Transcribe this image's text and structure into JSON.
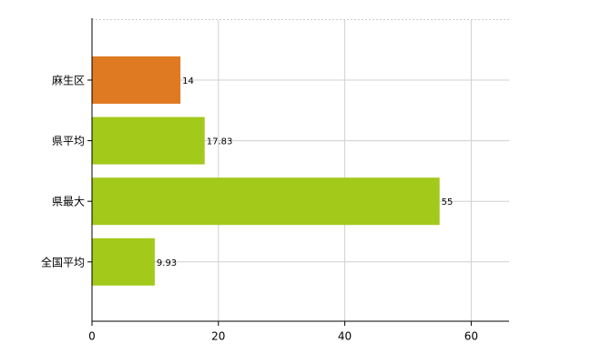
{
  "chart_data": {
    "type": "bar",
    "orientation": "horizontal",
    "categories": [
      "麻生区",
      "県平均",
      "県最大",
      "全国平均"
    ],
    "values": [
      14,
      17.83,
      55,
      9.93
    ],
    "colors": [
      "#e07a22",
      "#a3c91a",
      "#a3c91a",
      "#a3c91a"
    ],
    "xlim": [
      0,
      66
    ],
    "xticks": [
      0,
      20,
      40,
      60
    ],
    "grid": true
  }
}
